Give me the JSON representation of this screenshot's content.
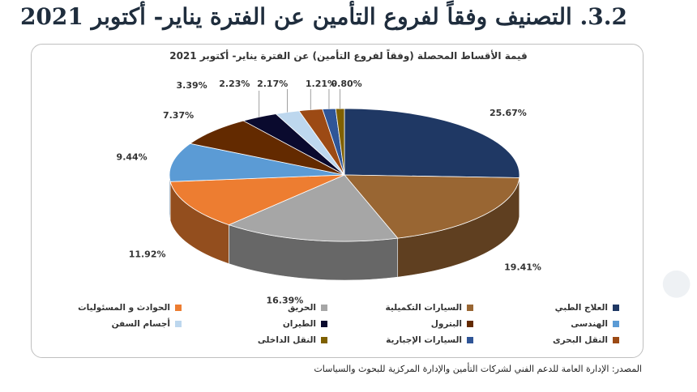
{
  "heading": "3.2. التصنيف وفقاً لفروع التأمين عن الفترة يناير- أكتوبر 2021",
  "source": "المصدر: الإدارة العامة للدعم الفني لشركات التأمين والإدارة المركزية للبحوث والسياسات",
  "colors": {
    "العلاج الطبي": "#1f3864",
    "السيارات التكميلية": "#996633",
    "الحريق": "#a6a6a6",
    "الحوادث و المسئوليات": "#ed7d31",
    "الهندسى": "#5b9bd5",
    "البترول": "#632a00",
    "الطيران": "#0a0a2e",
    "أجسام السفن": "#bdd7ee",
    "النقل البحرى": "#9c4a14",
    "السيارات الإجبارية": "#2f5597",
    "النقل الداخلى": "#7f6000"
  },
  "chart_data": {
    "type": "pie",
    "title": "قيمة الأقساط المحصلة (وفقاً لفروع التأمين) عن الفترة يناير- أكتوبر 2021",
    "style": "3d",
    "legend_position": "bottom",
    "slices": [
      {
        "name": "العلاج الطبي",
        "value": 25.67,
        "label": "25.67%"
      },
      {
        "name": "السيارات التكميلية",
        "value": 19.41,
        "label": "19.41%"
      },
      {
        "name": "الحريق",
        "value": 16.39,
        "label": "16.39%"
      },
      {
        "name": "الحوادث و المسئوليات",
        "value": 11.92,
        "label": "11.92%"
      },
      {
        "name": "الهندسى",
        "value": 9.44,
        "label": "9.44%"
      },
      {
        "name": "البترول",
        "value": 7.37,
        "label": "7.37%"
      },
      {
        "name": "الطيران",
        "value": 3.39,
        "label": "3.39%"
      },
      {
        "name": "أجسام السفن",
        "value": 2.23,
        "label": "2.23%"
      },
      {
        "name": "النقل البحرى",
        "value": 2.17,
        "label": "2.17%"
      },
      {
        "name": "السيارات الإجبارية",
        "value": 1.21,
        "label": "1.21%"
      },
      {
        "name": "النقل الداخلى",
        "value": 0.8,
        "label": "0.80%"
      }
    ]
  }
}
